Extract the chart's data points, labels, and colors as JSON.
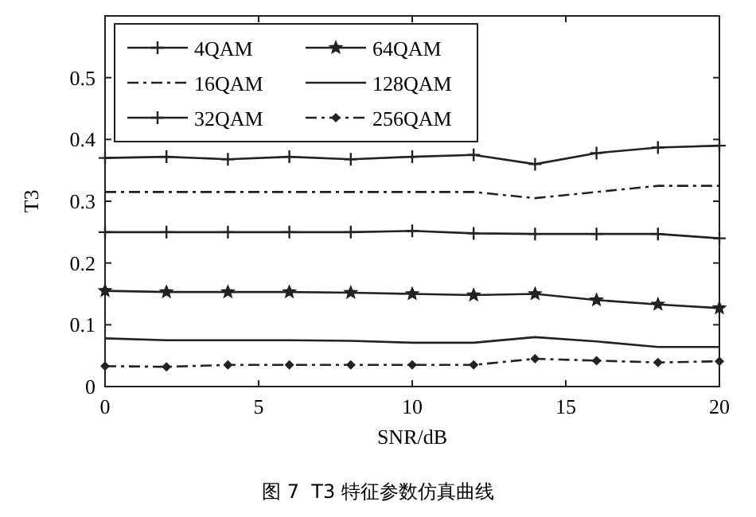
{
  "chart_data": {
    "type": "line",
    "xlabel": "SNR/dB",
    "ylabel": "T3",
    "annotations": [
      "图 7  T3 特征参数仿真曲线"
    ],
    "x": [
      0,
      2,
      4,
      6,
      8,
      10,
      12,
      14,
      16,
      18,
      20
    ],
    "xlim": [
      0,
      20
    ],
    "xticks": [
      0,
      5,
      10,
      15,
      20
    ],
    "ylim": [
      0,
      0.6
    ],
    "yticks": [
      0,
      0.1,
      0.2,
      0.3,
      0.4,
      0.5
    ],
    "grid": false,
    "legend": "top left",
    "series": [
      {
        "name": "4QAM",
        "color": "#222222",
        "marker": "cross",
        "line_style": "solid",
        "values": [
          0.37,
          0.372,
          0.368,
          0.372,
          0.368,
          0.372,
          0.375,
          0.36,
          0.378,
          0.387,
          0.39
        ]
      },
      {
        "name": "16QAM",
        "color": "#222222",
        "marker": "none",
        "line_style": "dashed",
        "values": [
          0.315,
          0.315,
          0.315,
          0.315,
          0.315,
          0.315,
          0.315,
          0.305,
          0.315,
          0.325,
          0.325
        ]
      },
      {
        "name": "32QAM",
        "color": "#222222",
        "marker": "cross",
        "line_style": "solid",
        "values": [
          0.25,
          0.25,
          0.25,
          0.25,
          0.25,
          0.252,
          0.248,
          0.247,
          0.247,
          0.247,
          0.24
        ]
      },
      {
        "name": "64QAM",
        "color": "#222222",
        "marker": "star",
        "line_style": "solid",
        "values": [
          0.155,
          0.153,
          0.153,
          0.153,
          0.152,
          0.15,
          0.148,
          0.15,
          0.14,
          0.133,
          0.127
        ]
      },
      {
        "name": "128QAM",
        "color": "#222222",
        "marker": "none",
        "line_style": "solid",
        "values": [
          0.078,
          0.075,
          0.075,
          0.075,
          0.074,
          0.071,
          0.071,
          0.08,
          0.073,
          0.064,
          0.064
        ]
      },
      {
        "name": "256QAM",
        "color": "#222222",
        "marker": "diamond",
        "line_style": "dashed",
        "values": [
          0.033,
          0.032,
          0.035,
          0.035,
          0.035,
          0.035,
          0.035,
          0.045,
          0.042,
          0.039,
          0.041
        ]
      }
    ]
  }
}
